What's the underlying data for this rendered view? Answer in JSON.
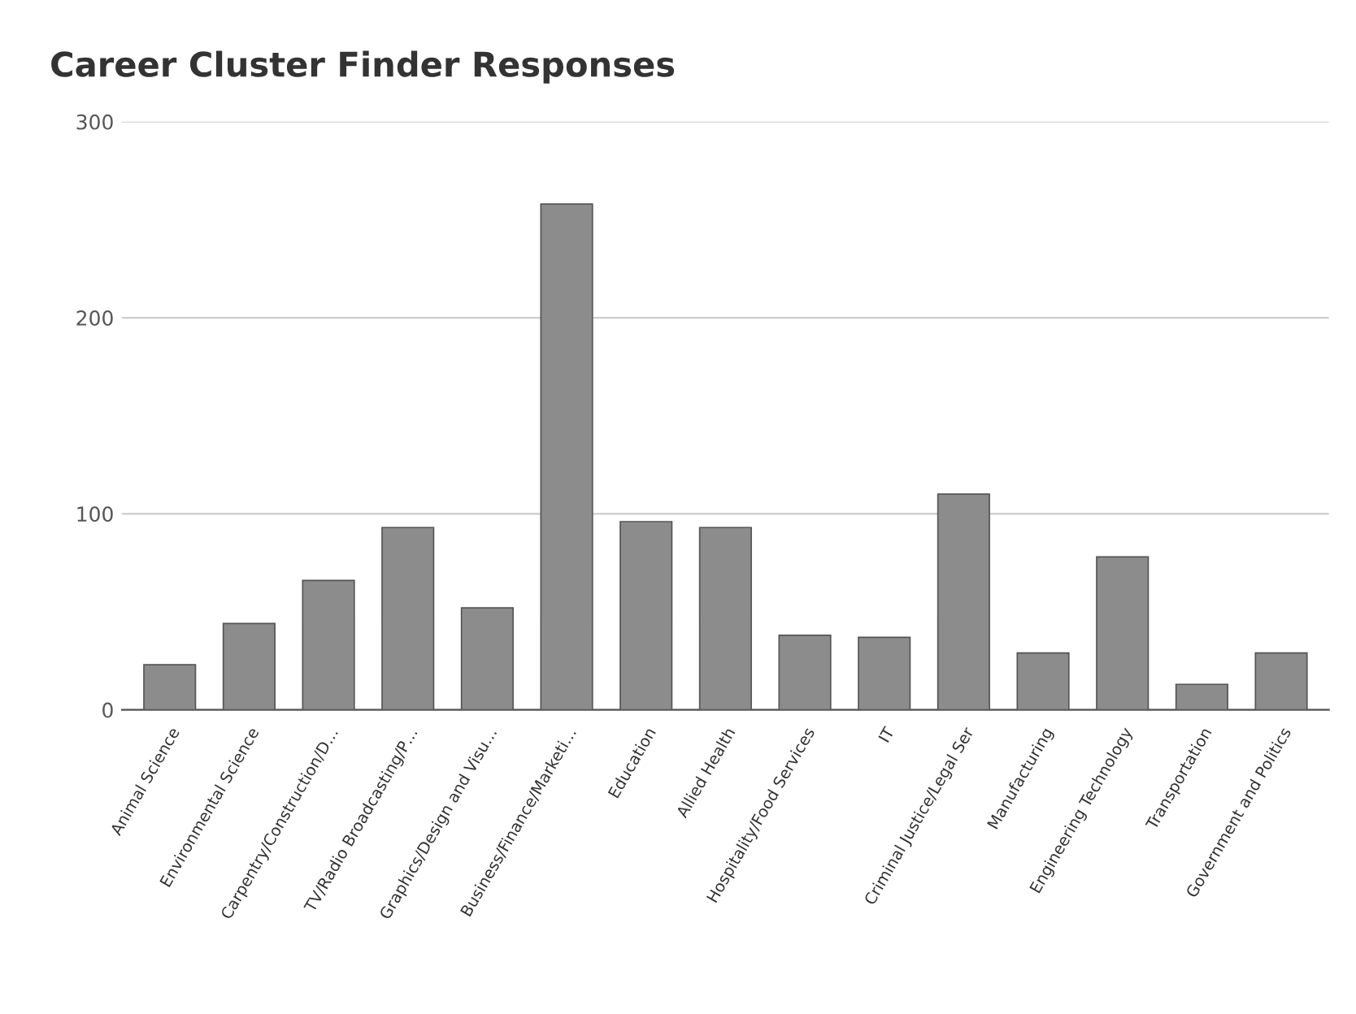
{
  "chart_data": {
    "type": "bar",
    "title": "Career Cluster Finder Responses",
    "categories": [
      "Animal Science",
      "Environmental Science",
      "Carpentry/Construction/D…",
      "TV/Radio Broadcasting/P…",
      "Graphics/Design and Visu…",
      "Business/Finance/Marketi…",
      "Education",
      "Allied Health",
      "Hospitality/Food Services",
      "IT",
      "Criminal Justice/Legal Ser",
      "Manufacturing",
      "Engineering Technology",
      "Transportation",
      "Government and Politics"
    ],
    "values": [
      23,
      44,
      66,
      93,
      52,
      258,
      96,
      93,
      38,
      37,
      110,
      29,
      78,
      13,
      29
    ],
    "color": "#8c8c8c",
    "ylim": [
      0,
      300
    ],
    "yticks": [
      0,
      100,
      200,
      300
    ],
    "grid": "y"
  }
}
